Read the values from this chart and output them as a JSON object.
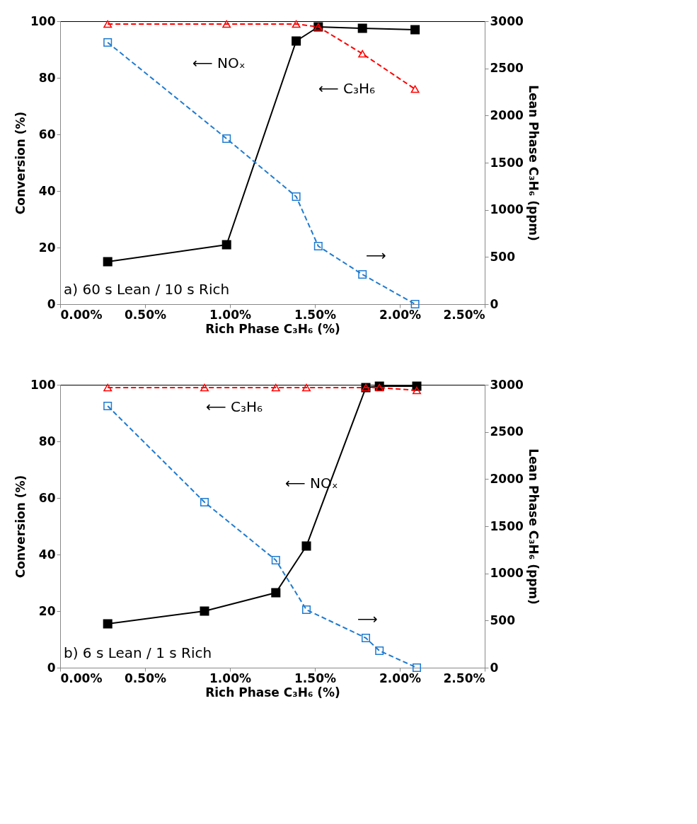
{
  "chart_data": [
    {
      "type": "line",
      "xlabel": "Rich Phase C₃H₆ (%)",
      "ylabel": "Conversion (%)",
      "y2label": "Lean Phase C₃H₆ (ppm)",
      "xlim": [
        0,
        2.5
      ],
      "xticks": [
        {
          "value": 0,
          "label": "0.00%"
        },
        {
          "value": 0.5,
          "label": "0.50%"
        },
        {
          "value": 1,
          "label": "1.00%"
        },
        {
          "value": 1.5,
          "label": "1.50%"
        },
        {
          "value": 2,
          "label": "2.00%"
        },
        {
          "value": 2.5,
          "label": "2.50%"
        }
      ],
      "ylim": [
        0,
        100
      ],
      "yticks": [
        0,
        20,
        40,
        60,
        80,
        100
      ],
      "y2lim": [
        0,
        3000
      ],
      "y2ticks": [
        0,
        500,
        1000,
        1500,
        2000,
        2500,
        3000
      ],
      "grid": false,
      "series": [
        {
          "color": "#000000",
          "marker": "square",
          "line_style": "solid",
          "x": [
            0.28,
            0.98,
            1.39,
            1.52,
            1.78,
            2.09
          ],
          "values": [
            15,
            21,
            93,
            98,
            97.5,
            97
          ]
        },
        {
          "color": "#ff0000",
          "marker": "triangle",
          "line_style": "dashed",
          "x": [
            0.28,
            0.98,
            1.39,
            1.52,
            1.78,
            2.09
          ],
          "values": [
            99,
            99,
            99,
            98,
            88.5,
            76
          ]
        },
        {
          "color": "#1f7bd0",
          "marker": "square",
          "line_style": "dashed",
          "axis": "y2",
          "x": [
            0.28,
            0.98,
            1.39,
            1.52,
            1.78,
            2.09
          ],
          "values": [
            2775,
            1755,
            1140,
            615,
            315,
            0
          ]
        }
      ],
      "annotations": [
        "⟵ NOₓ",
        "⟵ C₃H₆",
        "⟶",
        "a) 60 s Lean / 10 s Rich"
      ]
    },
    {
      "type": "line",
      "xlabel": "Rich Phase C₃H₆ (%)",
      "ylabel": "Conversion (%)",
      "y2label": "Lean Phase C₃H₆ (ppm)",
      "xlim": [
        0,
        2.5
      ],
      "xticks": [
        {
          "value": 0,
          "label": "0.00%"
        },
        {
          "value": 0.5,
          "label": "0.50%"
        },
        {
          "value": 1,
          "label": "1.00%"
        },
        {
          "value": 1.5,
          "label": "1.50%"
        },
        {
          "value": 2,
          "label": "2.00%"
        },
        {
          "value": 2.5,
          "label": "2.50%"
        }
      ],
      "ylim": [
        0,
        100
      ],
      "yticks": [
        0,
        20,
        40,
        60,
        80,
        100
      ],
      "y2lim": [
        0,
        3000
      ],
      "y2ticks": [
        0,
        500,
        1000,
        1500,
        2000,
        2500,
        3000
      ],
      "grid": false,
      "series": [
        {
          "color": "#000000",
          "marker": "square",
          "line_style": "solid",
          "x": [
            0.28,
            0.85,
            1.27,
            1.45,
            1.8,
            1.88,
            2.1
          ],
          "values": [
            15.5,
            20,
            26.5,
            43,
            99,
            99.5,
            99.5
          ]
        },
        {
          "color": "#ff0000",
          "marker": "triangle",
          "line_style": "dashed",
          "x": [
            0.28,
            0.85,
            1.27,
            1.45,
            1.8,
            1.88,
            2.1
          ],
          "values": [
            99,
            99,
            99,
            99,
            99,
            99,
            98
          ]
        },
        {
          "color": "#1f7bd0",
          "marker": "square",
          "line_style": "dashed",
          "axis": "y2",
          "x": [
            0.28,
            0.85,
            1.27,
            1.45,
            1.8,
            1.88,
            2.1
          ],
          "values": [
            2775,
            1755,
            1140,
            615,
            315,
            180,
            0
          ]
        }
      ],
      "annotations": [
        "⟵ C₃H₆",
        "⟵ NOₓ",
        "⟶",
        "b) 6 s Lean / 1 s Rich"
      ]
    }
  ]
}
